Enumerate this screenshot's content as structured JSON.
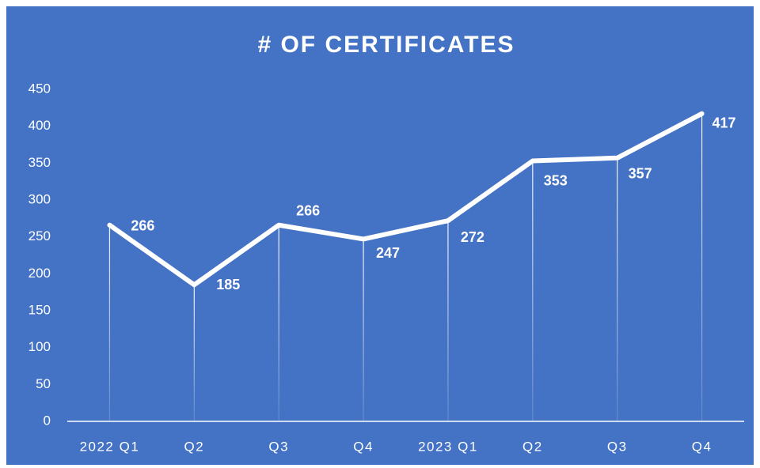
{
  "chart_data": {
    "type": "line",
    "title": "# OF CERTIFICATES",
    "categories": [
      "2022 Q1",
      "Q2",
      "Q3",
      "Q4",
      "2023 Q1",
      "Q2",
      "Q3",
      "Q4"
    ],
    "values": [
      266,
      185,
      266,
      247,
      272,
      353,
      357,
      417
    ],
    "color": "#ffffff",
    "ylim": [
      0,
      450
    ],
    "yticks": [
      0,
      50,
      100,
      150,
      200,
      250,
      300,
      350,
      400,
      450
    ]
  }
}
